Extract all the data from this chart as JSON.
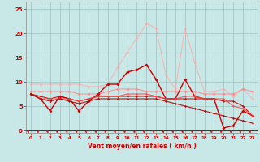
{
  "x": [
    0,
    1,
    2,
    3,
    4,
    5,
    6,
    7,
    8,
    9,
    10,
    11,
    12,
    13,
    14,
    15,
    16,
    17,
    18,
    19,
    20,
    21,
    22,
    23
  ],
  "series": [
    {
      "color": "#ffaaaa",
      "alpha": 0.8,
      "lw": 0.8,
      "marker": "D",
      "ms": 2.0,
      "y": [
        9.5,
        9.5,
        9.5,
        9.5,
        9.5,
        9.5,
        9.0,
        9.0,
        9.5,
        13.0,
        16.0,
        19.0,
        22.0,
        21.0,
        11.5,
        8.5,
        21.0,
        14.0,
        8.0,
        8.0,
        8.5,
        7.0,
        8.5,
        6.5
      ]
    },
    {
      "color": "#ff8888",
      "alpha": 0.85,
      "lw": 0.8,
      "marker": "D",
      "ms": 2.0,
      "y": [
        8.0,
        8.0,
        8.0,
        8.0,
        8.0,
        7.5,
        7.5,
        7.5,
        8.0,
        8.5,
        8.5,
        8.5,
        8.0,
        8.0,
        8.0,
        8.0,
        8.0,
        8.0,
        7.5,
        7.5,
        7.5,
        7.5,
        8.5,
        8.0
      ]
    },
    {
      "color": "#cc0000",
      "alpha": 1.0,
      "lw": 1.0,
      "marker": "D",
      "ms": 2.0,
      "y": [
        7.5,
        6.5,
        4.0,
        7.0,
        6.5,
        4.0,
        6.0,
        7.5,
        9.5,
        9.5,
        12.0,
        12.5,
        13.5,
        10.5,
        6.5,
        6.5,
        10.5,
        7.0,
        6.5,
        6.5,
        0.5,
        1.0,
        4.0,
        3.0
      ]
    },
    {
      "color": "#cc0000",
      "alpha": 0.9,
      "lw": 0.8,
      "marker": "D",
      "ms": 1.5,
      "y": [
        7.5,
        7.0,
        6.5,
        7.0,
        6.5,
        6.0,
        6.5,
        7.0,
        7.0,
        7.0,
        7.0,
        7.0,
        7.0,
        7.0,
        6.5,
        6.5,
        6.5,
        6.5,
        6.5,
        6.5,
        6.0,
        6.0,
        5.0,
        3.0
      ]
    },
    {
      "color": "#ff4444",
      "alpha": 0.85,
      "lw": 0.8,
      "marker": "D",
      "ms": 1.5,
      "y": [
        7.5,
        6.5,
        6.5,
        6.5,
        6.5,
        6.0,
        6.5,
        7.0,
        7.0,
        7.0,
        7.5,
        7.5,
        7.5,
        7.0,
        6.5,
        6.5,
        7.0,
        7.0,
        6.5,
        6.5,
        6.5,
        5.0,
        4.5,
        3.0
      ]
    },
    {
      "color": "#aa0000",
      "alpha": 0.9,
      "lw": 0.8,
      "marker": "D",
      "ms": 1.5,
      "y": [
        7.5,
        6.5,
        6.0,
        6.5,
        6.0,
        5.5,
        6.0,
        6.5,
        6.5,
        6.5,
        6.5,
        6.5,
        6.5,
        6.5,
        6.0,
        5.5,
        5.0,
        4.5,
        4.0,
        3.5,
        3.0,
        2.5,
        2.0,
        1.5
      ]
    }
  ],
  "xlabel": "Vent moyen/en rafales ( km/h )",
  "xlim": [
    -0.5,
    23.5
  ],
  "ylim": [
    -0.5,
    26.5
  ],
  "yticks": [
    0,
    5,
    10,
    15,
    20,
    25
  ],
  "xticks": [
    0,
    1,
    2,
    3,
    4,
    5,
    6,
    7,
    8,
    9,
    10,
    11,
    12,
    13,
    14,
    15,
    16,
    17,
    18,
    19,
    20,
    21,
    22,
    23
  ],
  "bg_color": "#c8e8e8",
  "grid_color": "#a0c0c0",
  "tick_color": "#cc0000",
  "label_color": "#cc0000",
  "spine_color": "#888888",
  "arrow_color": "#cc0000",
  "hline_color": "#cc0000"
}
